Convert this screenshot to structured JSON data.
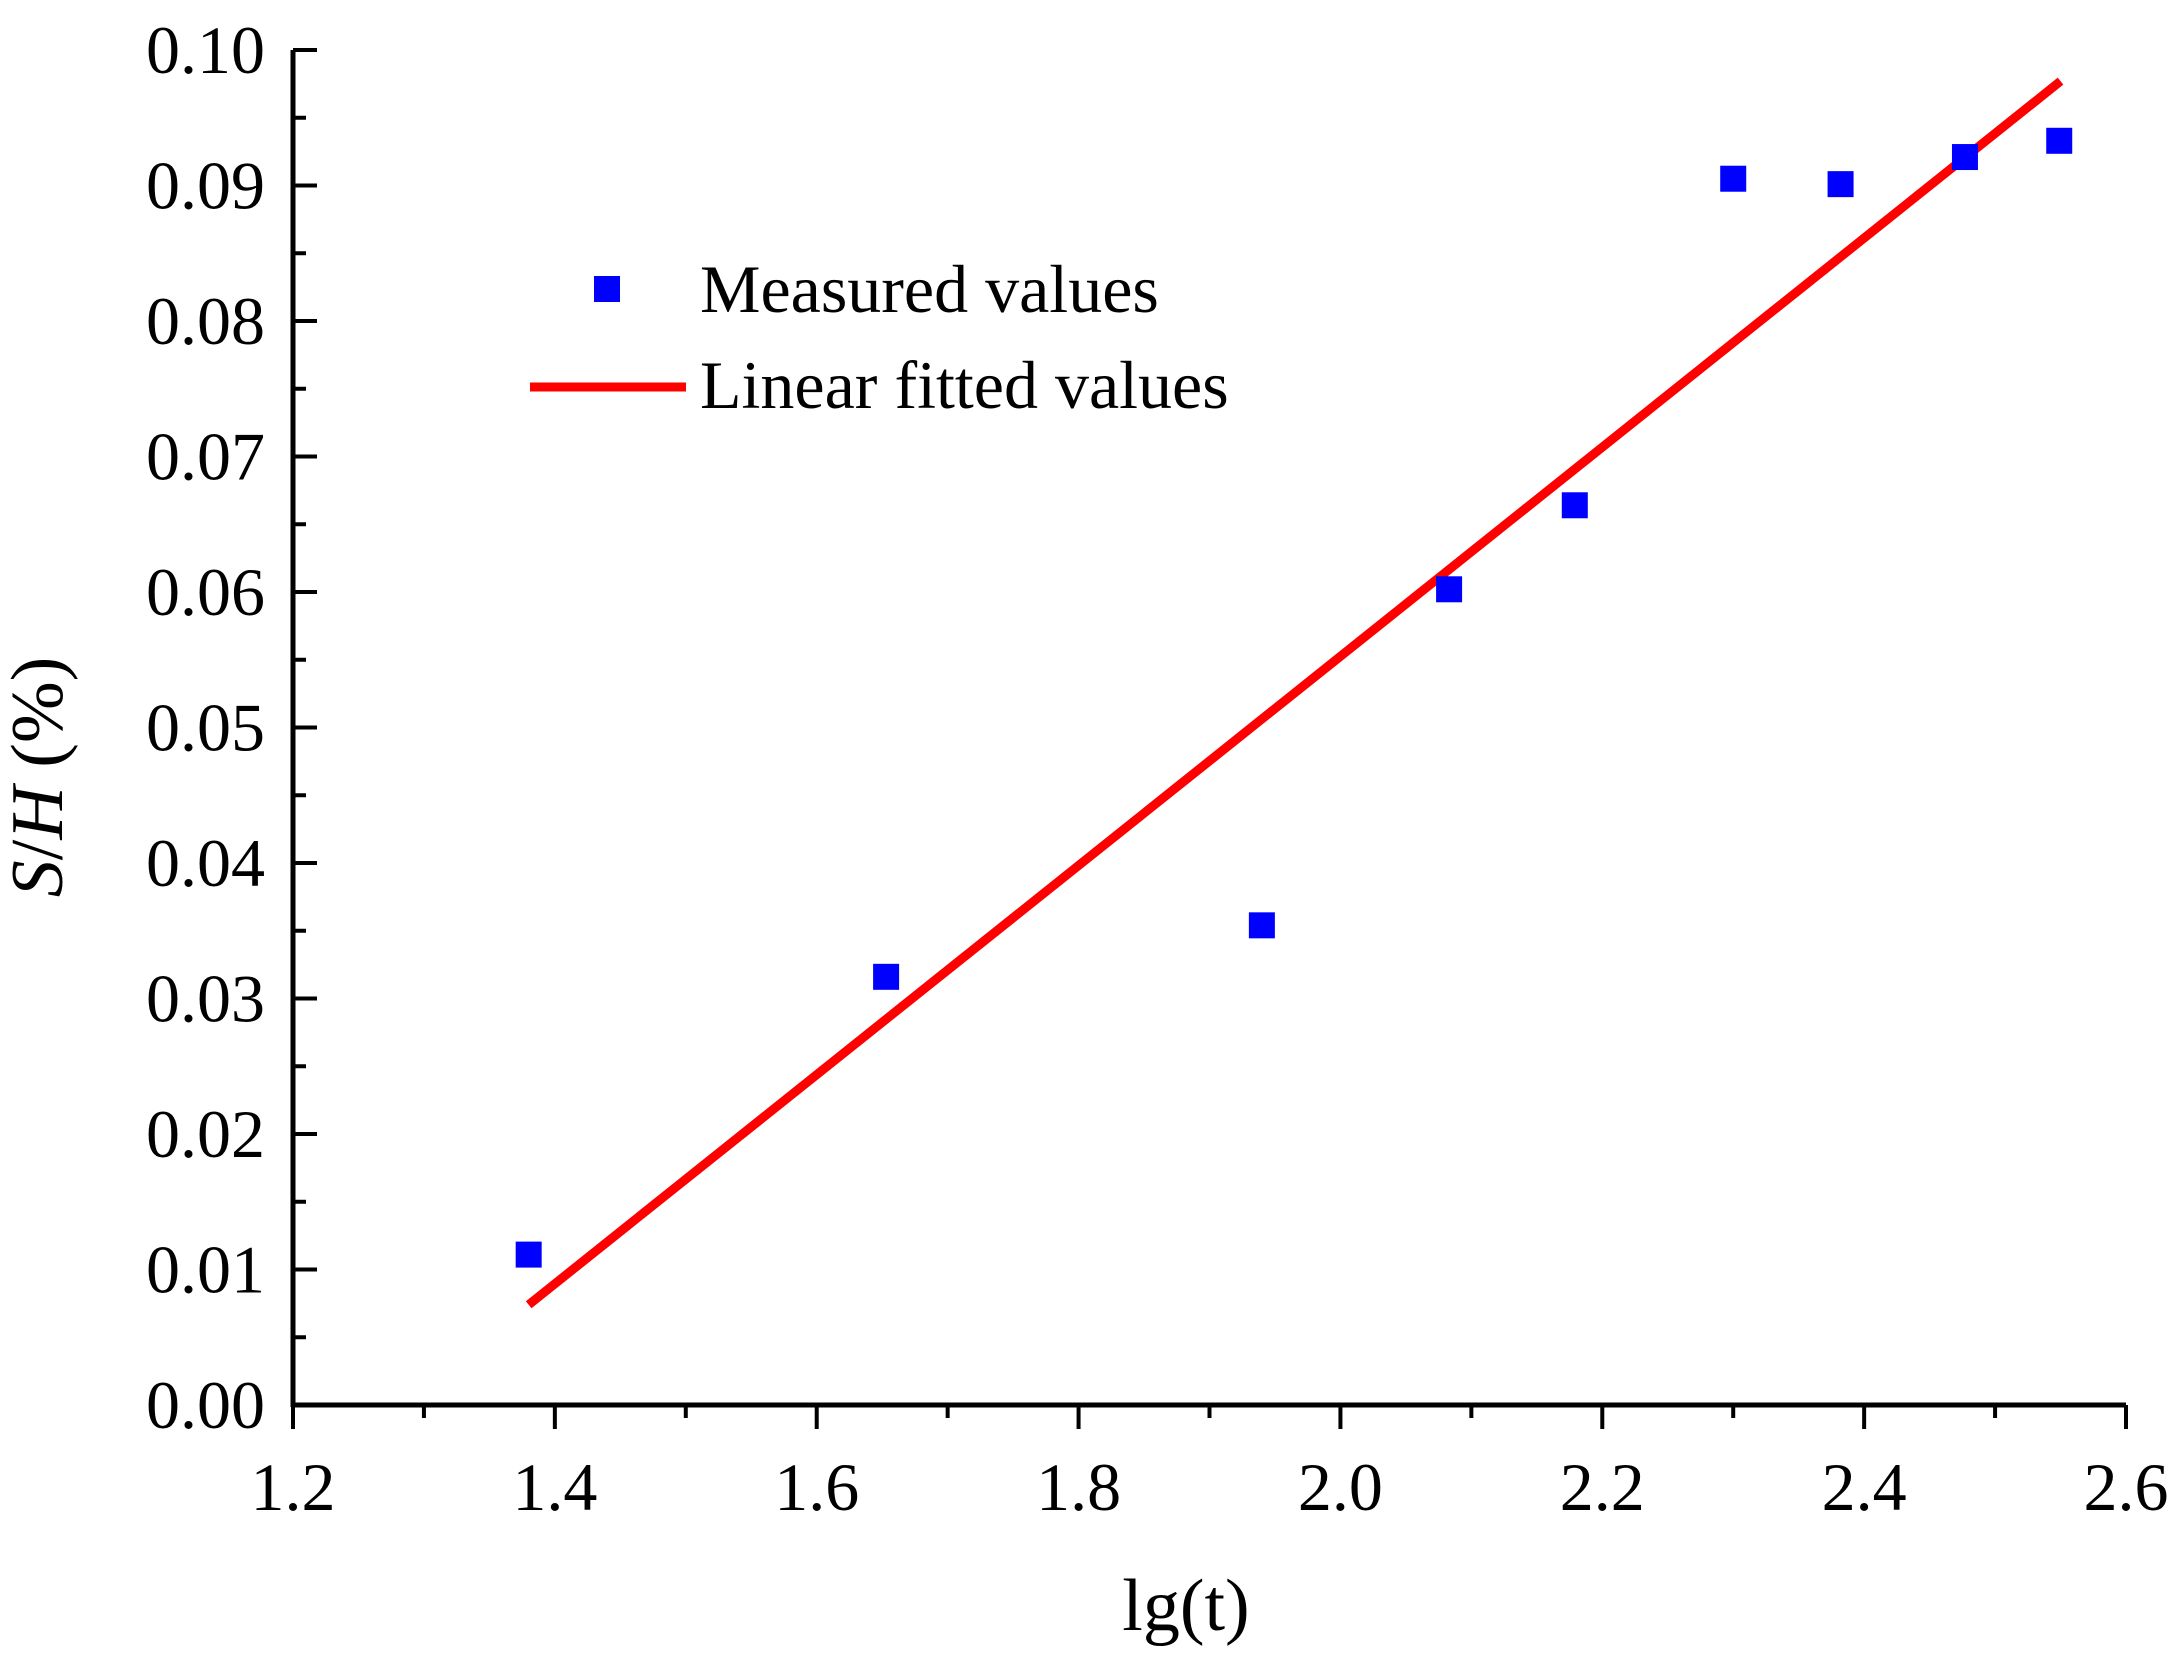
{
  "chart_data": {
    "type": "scatter",
    "xlabel": "lg(t)",
    "ylabel": {
      "italic_part_1": "S",
      "slash": "/",
      "italic_part_2": "H",
      "unit": " (%)"
    },
    "xlim": [
      1.2,
      2.6
    ],
    "ylim": [
      0.0,
      0.1
    ],
    "x_ticks": [
      1.2,
      1.4,
      1.6,
      1.8,
      2.0,
      2.2,
      2.4,
      2.6
    ],
    "x_tick_labels": [
      "1.2",
      "1.4",
      "1.6",
      "1.8",
      "2.0",
      "2.2",
      "2.4",
      "2.6"
    ],
    "y_ticks": [
      0.0,
      0.01,
      0.02,
      0.03,
      0.04,
      0.05,
      0.06,
      0.07,
      0.08,
      0.09,
      0.1
    ],
    "y_tick_labels": [
      "0.00",
      "0.01",
      "0.02",
      "0.03",
      "0.04",
      "0.05",
      "0.06",
      "0.07",
      "0.08",
      "0.09",
      "0.10"
    ],
    "grid": false,
    "legend_position": "top-left",
    "series": [
      {
        "name": "Measured values",
        "kind": "scatter",
        "marker": "square",
        "color": "#0000ff",
        "x": [
          1.38,
          1.653,
          1.94,
          2.083,
          2.179,
          2.3,
          2.382,
          2.477,
          2.549
        ],
        "y": [
          0.0111,
          0.0316,
          0.0354,
          0.0602,
          0.0664,
          0.0905,
          0.0901,
          0.0921,
          0.0933
        ]
      },
      {
        "name": "Linear fitted values",
        "kind": "line",
        "color": "#ff0000",
        "x": [
          1.38,
          2.55
        ],
        "y": [
          0.0074,
          0.0977
        ]
      }
    ]
  }
}
